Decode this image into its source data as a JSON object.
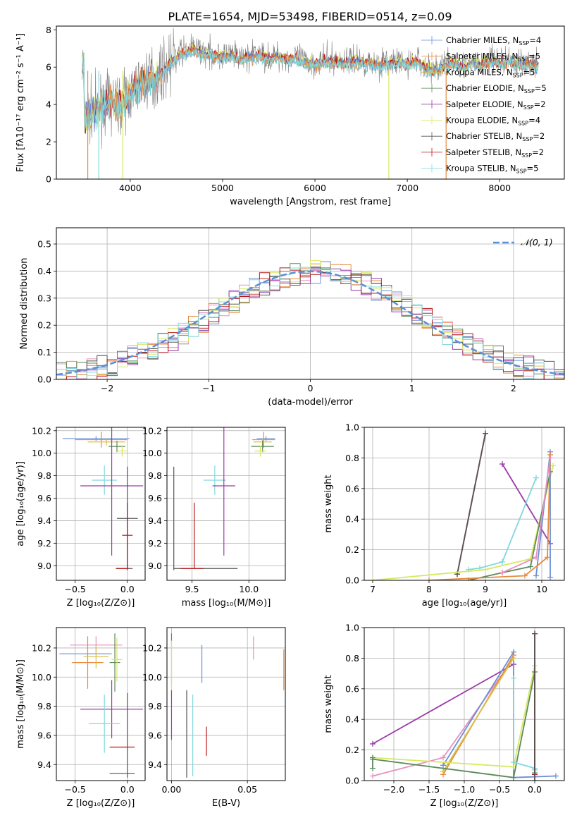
{
  "figure": {
    "title": "PLATE=1654, MJD=53498, FIBERID=0514, z=0.09"
  },
  "colors": {
    "Chabrier MILES": "#6a8fd8",
    "Salpeter MILES": "#e88a3c",
    "Kroupa MILES": "#d8c04a",
    "Chabrier ELODIE": "#5c8a5c",
    "Salpeter ELODIE": "#9b3aa8",
    "Kroupa ELODIE": "#d8e860",
    "Chabrier STELIB": "#555555",
    "Salpeter STELIB": "#b81818",
    "Kroupa STELIB": "#80d8dc",
    "extra": "#e890c0",
    "model_dash": "#5b8fd8",
    "grid": "#b0b0b0"
  },
  "chart_data": [
    {
      "id": "spectrum",
      "type": "line",
      "xlabel": "wavelength [Angstrom, rest frame]",
      "ylabel": "Flux [fλ10⁻¹⁷ erg cm⁻² s⁻¹ A⁻¹]",
      "xlim": [
        3200,
        8700
      ],
      "ylim": [
        0,
        8.2
      ],
      "xticks": [
        "4000",
        "5000",
        "6000",
        "7000",
        "8000"
      ],
      "yticks": [
        "0",
        "2",
        "4",
        "6",
        "8"
      ],
      "grid": false,
      "legend_position": "right",
      "legend": [
        "Chabrier MILES, N_SSP=4",
        "Salpeter MILES, N_SSP=5",
        "Kroupa MILES, N_SSP=5",
        "Chabrier ELODIE, N_SSP=5",
        "Salpeter ELODIE, N_SSP=2",
        "Kroupa ELODIE, N_SSP=4",
        "Chabrier STELIB, N_SSP=2",
        "Salpeter STELIB, N_SSP=2",
        "Kroupa STELIB, N_SSP=5"
      ],
      "continuum": [
        [
          3500,
          3.3
        ],
        [
          3600,
          3.7
        ],
        [
          3700,
          3.9
        ],
        [
          3800,
          4.2
        ],
        [
          3900,
          4.0
        ],
        [
          4000,
          4.6
        ],
        [
          4100,
          5.1
        ],
        [
          4200,
          5.4
        ],
        [
          4300,
          5.5
        ],
        [
          4400,
          6.1
        ],
        [
          4500,
          6.6
        ],
        [
          4600,
          6.9
        ],
        [
          4700,
          7.0
        ],
        [
          4800,
          6.8
        ],
        [
          4900,
          6.7
        ],
        [
          5000,
          6.6
        ],
        [
          5100,
          6.7
        ],
        [
          5200,
          6.5
        ],
        [
          5300,
          6.6
        ],
        [
          5400,
          6.7
        ],
        [
          5500,
          6.5
        ],
        [
          5600,
          6.6
        ],
        [
          5700,
          6.5
        ],
        [
          5800,
          6.5
        ],
        [
          5900,
          6.3
        ],
        [
          6000,
          6.2
        ],
        [
          6100,
          6.4
        ],
        [
          6200,
          6.4
        ],
        [
          6300,
          6.3
        ],
        [
          6400,
          6.4
        ],
        [
          6500,
          6.3
        ],
        [
          6600,
          6.3
        ],
        [
          6700,
          6.2
        ],
        [
          6800,
          6.3
        ],
        [
          6900,
          6.3
        ],
        [
          7000,
          6.2
        ],
        [
          7100,
          6.4
        ],
        [
          7200,
          6.0
        ],
        [
          7300,
          5.9
        ],
        [
          7400,
          6.2
        ],
        [
          7500,
          6.3
        ],
        [
          7600,
          6.1
        ],
        [
          7700,
          6.3
        ],
        [
          7800,
          6.2
        ],
        [
          7900,
          6.4
        ],
        [
          8000,
          6.3
        ],
        [
          8100,
          6.4
        ],
        [
          8200,
          6.2
        ],
        [
          8300,
          6.3
        ],
        [
          8400,
          6.1
        ]
      ]
    },
    {
      "id": "residuals",
      "type": "histogram",
      "xlabel": "(data-model)/error",
      "ylabel": "Normed distribution",
      "xlim": [
        -2.5,
        2.5
      ],
      "ylim": [
        0,
        0.56
      ],
      "xticks": [
        "−2",
        "−1",
        "0",
        "1",
        "2"
      ],
      "yticks": [
        "0.0",
        "0.1",
        "0.2",
        "0.3",
        "0.4",
        "0.5"
      ],
      "grid": true,
      "legend": [
        "𝒩(0, 1)"
      ],
      "bin_width": 0.1
    },
    {
      "id": "age_vs_Z",
      "type": "errorbar",
      "xlabel": "Z [log₁₀(Z/Z⊙)]",
      "ylabel": "age  [log₁₀(age/yr)]",
      "xlim": [
        -0.68,
        0.17
      ],
      "ylim": [
        8.87,
        10.23
      ],
      "xticks": [
        "−0.5",
        "0.0"
      ],
      "yticks": [
        "9.0",
        "9.2",
        "9.4",
        "9.6",
        "9.8",
        "10.0",
        "10.2"
      ],
      "grid": true,
      "points": [
        {
          "c": "Chabrier MILES",
          "x": -0.3,
          "xe": 0.32,
          "y": 10.13,
          "ye": 0.02
        },
        {
          "c": "Salpeter MILES",
          "x": -0.25,
          "xe": 0.25,
          "y": 10.12,
          "ye": 0.07
        },
        {
          "c": "Kroupa MILES",
          "x": -0.2,
          "xe": 0.18,
          "y": 10.1,
          "ye": 0.03
        },
        {
          "c": "Chabrier ELODIE",
          "x": -0.1,
          "xe": 0.08,
          "y": 10.06,
          "ye": 0.05
        },
        {
          "c": "Kroupa ELODIE",
          "x": -0.05,
          "xe": 0.05,
          "y": 10.02,
          "ye": 0.05
        },
        {
          "c": "Kroupa STELIB",
          "x": -0.22,
          "xe": 0.12,
          "y": 9.76,
          "ye": 0.13
        },
        {
          "c": "Salpeter ELODIE",
          "x": -0.15,
          "xe": 0.3,
          "y": 9.71,
          "ye": 0.62
        },
        {
          "c": "Chabrier STELIB",
          "x": 0.0,
          "xe": 0.1,
          "y": 9.42,
          "ye": 0.46
        },
        {
          "c": "Salpeter STELIB",
          "x": 0.0,
          "xe": 0.05,
          "y": 9.27,
          "ye": 0.29
        },
        {
          "c": "Chabrier STELIB",
          "x": -0.03,
          "xe": 0.08,
          "y": 8.975,
          "ye": 0.0
        },
        {
          "c": "Salpeter STELIB",
          "x": -0.05,
          "xe": 0.06,
          "y": 8.975,
          "ye": 0.0
        }
      ]
    },
    {
      "id": "age_vs_mass",
      "type": "errorbar",
      "xlabel": "mass [log₁₀(M/M⊙)]",
      "ylabel": "",
      "xlim": [
        9.28,
        10.32
      ],
      "ylim": [
        8.87,
        10.23
      ],
      "xticks": [
        "9.5",
        "10.0"
      ],
      "yticks": [
        "9.0",
        "9.2",
        "9.4",
        "9.6",
        "9.8",
        "10.0",
        "10.2"
      ],
      "grid": true,
      "points": [
        {
          "c": "Chabrier MILES",
          "x": 10.15,
          "xe": 0.08,
          "y": 10.13,
          "ye": 0.02
        },
        {
          "c": "Salpeter MILES",
          "x": 10.13,
          "xe": 0.1,
          "y": 10.12,
          "ye": 0.07
        },
        {
          "c": "Kroupa MILES",
          "x": 10.12,
          "xe": 0.08,
          "y": 10.1,
          "ye": 0.03
        },
        {
          "c": "Chabrier ELODIE",
          "x": 10.12,
          "xe": 0.1,
          "y": 10.06,
          "ye": 0.05
        },
        {
          "c": "Kroupa ELODIE",
          "x": 10.1,
          "xe": 0.05,
          "y": 10.02,
          "ye": 0.05
        },
        {
          "c": "Kroupa STELIB",
          "x": 9.7,
          "xe": 0.1,
          "y": 9.76,
          "ye": 0.13
        },
        {
          "c": "Salpeter ELODIE",
          "x": 9.78,
          "xe": 0.1,
          "y": 9.71,
          "ye": 0.62
        },
        {
          "c": "Chabrier STELIB",
          "x": 9.34,
          "xe": 0.0,
          "y": 9.42,
          "ye": 0.46
        },
        {
          "c": "Salpeter STELIB",
          "x": 9.52,
          "xe": 0.0,
          "y": 9.27,
          "ye": 0.29
        },
        {
          "c": "Chabrier STELIB",
          "x": 9.62,
          "xe": 0.28,
          "y": 8.975,
          "ye": 0.0
        },
        {
          "c": "Salpeter STELIB",
          "x": 9.5,
          "xe": 0.1,
          "y": 8.975,
          "ye": 0.0
        }
      ]
    },
    {
      "id": "mass_weight_vs_age",
      "type": "line",
      "xlabel": "age  [log₁₀(age/yr)]",
      "ylabel": "mass weight",
      "xlim": [
        6.85,
        10.4
      ],
      "ylim": [
        0,
        1.0
      ],
      "xticks": [
        "7",
        "8",
        "9",
        "10"
      ],
      "yticks": [
        "0.0",
        "0.2",
        "0.4",
        "0.6",
        "0.8",
        "1.0"
      ],
      "grid": true,
      "series": [
        {
          "c": "Salpeter ELODIE",
          "x": [
            9.3,
            10.15
          ],
          "y": [
            0.76,
            0.24
          ]
        },
        {
          "c": "Salpeter STELIB",
          "x": [
            8.5,
            9.0
          ],
          "y": [
            0.04,
            0.96
          ]
        },
        {
          "c": "Chabrier STELIB",
          "x": [
            8.5,
            9.0
          ],
          "y": [
            0.04,
            0.96
          ]
        },
        {
          "c": "Kroupa STELIB",
          "x": [
            8.7,
            8.9,
            9.3,
            9.9
          ],
          "y": [
            0.07,
            0.08,
            0.12,
            0.67
          ]
        },
        {
          "c": "Kroupa ELODIE",
          "x": [
            7.0,
            9.0,
            9.8,
            10.2
          ],
          "y": [
            0.0,
            0.07,
            0.14,
            0.75
          ]
        },
        {
          "c": "Chabrier ELODIE",
          "x": [
            8.7,
            9.3,
            9.8,
            10.15
          ],
          "y": [
            0.0,
            0.05,
            0.09,
            0.71
          ]
        },
        {
          "c": "Chabrier MILES",
          "x": [
            9.9,
            10.15,
            10.15
          ],
          "y": [
            0.03,
            0.84,
            0.02
          ]
        },
        {
          "c": "Salpeter MILES",
          "x": [
            8.0,
            9.7,
            10.1,
            10.15
          ],
          "y": [
            0.0,
            0.03,
            0.15,
            0.82
          ]
        },
        {
          "c": "extra",
          "x": [
            9.3,
            9.9,
            10.15
          ],
          "y": [
            0.05,
            0.15,
            0.8
          ]
        }
      ]
    },
    {
      "id": "mass_vs_Z",
      "type": "errorbar",
      "xlabel": "Z [log₁₀(Z/Z⊙)]",
      "ylabel": "mass [log₁₀(M/M⊙)]",
      "xlim": [
        -0.68,
        0.17
      ],
      "ylim": [
        9.29,
        10.34
      ],
      "xticks": [
        "−0.5",
        "0.0"
      ],
      "yticks": [
        "9.4",
        "9.6",
        "9.8",
        "10.0",
        "10.2"
      ],
      "grid": true,
      "points": [
        {
          "c": "Chabrier MILES",
          "x": -0.4,
          "xe": 0.25,
          "y": 10.16,
          "ye": 0.0
        },
        {
          "c": "extra",
          "x": -0.3,
          "xe": 0.25,
          "y": 10.22,
          "ye": 0.06
        },
        {
          "c": "Salpeter MILES",
          "x": -0.38,
          "xe": 0.15,
          "y": 10.1,
          "ye": 0.18
        },
        {
          "c": "Kroupa MILES",
          "x": -0.3,
          "xe": 0.12,
          "y": 10.14,
          "ye": 0.08
        },
        {
          "c": "Chabrier ELODIE",
          "x": -0.12,
          "xe": 0.05,
          "y": 10.1,
          "ye": 0.2
        },
        {
          "c": "Kroupa ELODIE",
          "x": -0.1,
          "xe": 0.05,
          "y": 10.12,
          "ye": 0.15
        },
        {
          "c": "Salpeter ELODIE",
          "x": -0.15,
          "xe": 0.3,
          "y": 9.78,
          "ye": 0.2
        },
        {
          "c": "Kroupa STELIB",
          "x": -0.22,
          "xe": 0.15,
          "y": 9.68,
          "ye": 0.2
        },
        {
          "c": "Chabrier STELIB",
          "x": 0.0,
          "xe": 0.0,
          "y": 9.6,
          "ye": 0.29
        },
        {
          "c": "Salpeter STELIB",
          "x": -0.05,
          "xe": 0.12,
          "y": 9.52,
          "ye": 0.0
        },
        {
          "c": "Chabrier STELIB",
          "x": -0.05,
          "xe": 0.12,
          "y": 9.34,
          "ye": 0.0
        }
      ]
    },
    {
      "id": "mass_vs_EBV",
      "type": "errorbar",
      "xlabel": "E(B-V)",
      "ylabel": "",
      "xlim": [
        -0.003,
        0.075
      ],
      "ylim": [
        9.29,
        10.34
      ],
      "xticks": [
        "0.00",
        "0.05"
      ],
      "yticks": [
        "9.4",
        "9.6",
        "9.8",
        "10.0",
        "10.2"
      ],
      "grid": true,
      "points": [
        {
          "c": "Chabrier ELODIE",
          "x": 0.0,
          "xe": 0.0,
          "y": 10.12,
          "ye": 0.18
        },
        {
          "c": "Kroupa ELODIE",
          "x": 0.0,
          "xe": 0.0,
          "y": 10.05,
          "ye": 0.2
        },
        {
          "c": "Salpeter ELODIE",
          "x": 0.0,
          "xe": 0.0,
          "y": 9.74,
          "ye": 0.17
        },
        {
          "c": "Chabrier MILES",
          "x": 0.02,
          "xe": 0.0,
          "y": 10.09,
          "ye": 0.13
        },
        {
          "c": "extra",
          "x": 0.054,
          "xe": 0.0,
          "y": 10.2,
          "ye": 0.08
        },
        {
          "c": "Salpeter MILES",
          "x": 0.074,
          "xe": 0.0,
          "y": 10.05,
          "ye": 0.14
        },
        {
          "c": "Chabrier STELIB",
          "x": 0.01,
          "xe": 0.0,
          "y": 9.61,
          "ye": 0.3
        },
        {
          "c": "Kroupa STELIB",
          "x": 0.014,
          "xe": 0.0,
          "y": 9.6,
          "ye": 0.28
        },
        {
          "c": "Salpeter STELIB",
          "x": 0.023,
          "xe": 0.0,
          "y": 9.56,
          "ye": 0.1
        }
      ]
    },
    {
      "id": "mass_weight_vs_Z",
      "type": "line",
      "xlabel": "Z [log₁₀(Z/Z⊙)]",
      "ylabel": "mass weight",
      "xlim": [
        -2.42,
        0.42
      ],
      "ylim": [
        0,
        1.0
      ],
      "xticks": [
        "−2.0",
        "−1.5",
        "−1.0",
        "−0.5",
        "0.0"
      ],
      "yticks": [
        "0.0",
        "0.2",
        "0.4",
        "0.6",
        "0.8",
        "1.0"
      ],
      "grid": true,
      "series": [
        {
          "c": "Salpeter ELODIE",
          "x": [
            -2.3,
            -0.3
          ],
          "y": [
            0.24,
            0.76
          ]
        },
        {
          "c": "extra",
          "x": [
            -2.3,
            -1.3,
            -0.3
          ],
          "y": [
            0.03,
            0.15,
            0.8
          ]
        },
        {
          "c": "Chabrier MILES",
          "x": [
            -1.3,
            -0.3,
            -0.3,
            0.3
          ],
          "y": [
            0.1,
            0.84,
            0.02,
            0.03
          ]
        },
        {
          "c": "Salpeter MILES",
          "x": [
            -1.3,
            -0.3
          ],
          "y": [
            0.04,
            0.82
          ]
        },
        {
          "c": "Kroupa MILES",
          "x": [
            -1.3,
            -0.3
          ],
          "y": [
            0.06,
            0.8
          ]
        },
        {
          "c": "Kroupa ELODIE",
          "x": [
            -2.3,
            -0.3,
            0.0,
            0.0
          ],
          "y": [
            0.15,
            0.09,
            0.75,
            0.07
          ]
        },
        {
          "c": "Chabrier ELODIE",
          "x": [
            -2.3,
            -0.3,
            0.0,
            0.0
          ],
          "y": [
            0.14,
            0.02,
            0.71,
            0.05
          ]
        },
        {
          "c": "Kroupa STELIB",
          "x": [
            -0.3,
            -0.3,
            0.0,
            0.0
          ],
          "y": [
            0.67,
            0.12,
            0.08,
            0.07
          ]
        },
        {
          "c": "Salpeter STELIB",
          "x": [
            0.0,
            0.0
          ],
          "y": [
            0.04,
            0.96
          ]
        },
        {
          "c": "Chabrier STELIB",
          "x": [
            0.0,
            0.0
          ],
          "y": [
            0.0,
            0.96
          ]
        },
        {
          "c": "Chabrier ELODIE",
          "x": [
            -2.3,
            -2.3
          ],
          "y": [
            0.08,
            0.15
          ]
        }
      ]
    }
  ]
}
